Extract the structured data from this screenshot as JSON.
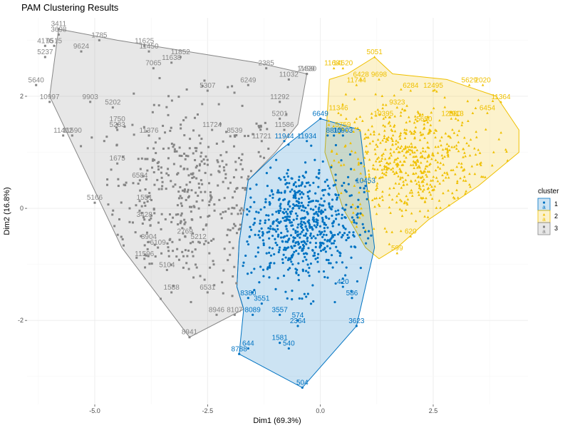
{
  "chart_data": {
    "type": "scatter",
    "title": "PAM Clustering Results",
    "xlabel": "Dim1 (69.3%)",
    "ylabel": "Dim2 (16.8%)",
    "xlim": [
      -6.5,
      4.6
    ],
    "ylim": [
      -3.5,
      3.4
    ],
    "x_ticks": [
      -5.0,
      -2.5,
      0.0,
      2.5
    ],
    "x_tick_labels": [
      "-5.0",
      "-2.5",
      "0.0",
      "2.5"
    ],
    "y_ticks": [
      -2,
      0,
      2
    ],
    "y_tick_labels": [
      "-2",
      "0",
      "2"
    ],
    "grid": true,
    "legend": {
      "title": "cluster",
      "placement": "right",
      "entries": [
        "1",
        "2",
        "3"
      ],
      "key_glyph": "a"
    },
    "colors": {
      "1": "#0073c2",
      "2": "#efc000",
      "3": "#868686"
    },
    "markers": {
      "1": "circle",
      "2": "triangle",
      "3": "square"
    },
    "series": [
      {
        "name": "1",
        "color": "#0073c2",
        "hull": [
          [
            0.0,
            1.6
          ],
          [
            0.88,
            1.4
          ],
          [
            1.0,
            0.6
          ],
          [
            1.2,
            -0.7
          ],
          [
            0.8,
            -2.1
          ],
          [
            -0.4,
            -3.2
          ],
          [
            -1.8,
            -2.6
          ],
          [
            -1.7,
            -1.8
          ],
          [
            -1.85,
            -1.4
          ],
          [
            -1.8,
            -0.6
          ],
          [
            -1.6,
            0.5
          ],
          [
            -0.95,
            1.0
          ]
        ],
        "labeled_points": [
          {
            "x": 0.0,
            "y": 1.6,
            "label": "6649"
          },
          {
            "x": -0.8,
            "y": 1.2,
            "label": "11944"
          },
          {
            "x": -0.3,
            "y": 1.2,
            "label": "11934"
          },
          {
            "x": 0.3,
            "y": 1.3,
            "label": "8815"
          },
          {
            "x": 0.5,
            "y": 1.3,
            "label": "10903"
          },
          {
            "x": 1.0,
            "y": 0.4,
            "label": "10453"
          },
          {
            "x": 0.5,
            "y": -1.4,
            "label": "420"
          },
          {
            "x": 0.7,
            "y": -1.6,
            "label": "586"
          },
          {
            "x": -1.3,
            "y": -1.7,
            "label": "3551"
          },
          {
            "x": -0.9,
            "y": -1.9,
            "label": "3557"
          },
          {
            "x": -1.5,
            "y": -1.9,
            "label": "8089"
          },
          {
            "x": -0.5,
            "y": -2.0,
            "label": "574"
          },
          {
            "x": -0.5,
            "y": -2.1,
            "label": "2364"
          },
          {
            "x": 0.8,
            "y": -2.1,
            "label": "3623"
          },
          {
            "x": -0.9,
            "y": -2.4,
            "label": "1581"
          },
          {
            "x": -0.7,
            "y": -2.5,
            "label": "540"
          },
          {
            "x": -1.6,
            "y": -2.5,
            "label": "644"
          },
          {
            "x": -1.8,
            "y": -2.6,
            "label": "8788"
          },
          {
            "x": -0.4,
            "y": -3.2,
            "label": "504"
          },
          {
            "x": -1.6,
            "y": -1.6,
            "label": "8380"
          }
        ],
        "cloud": {
          "cx": -0.4,
          "cy": -0.3,
          "sx": 0.65,
          "sy": 0.55,
          "n": 650
        }
      },
      {
        "name": "2",
        "color": "#efc000",
        "hull": [
          [
            0.2,
            2.3
          ],
          [
            0.6,
            2.4
          ],
          [
            1.2,
            2.7
          ],
          [
            1.6,
            2.4
          ],
          [
            2.8,
            2.3
          ],
          [
            3.9,
            2.0
          ],
          [
            4.4,
            1.4
          ],
          [
            4.4,
            1.0
          ],
          [
            3.5,
            0.4
          ],
          [
            2.4,
            -0.2
          ],
          [
            1.7,
            -0.7
          ],
          [
            1.3,
            -0.9
          ],
          [
            1.0,
            -0.7
          ],
          [
            0.5,
            0.0
          ],
          [
            0.1,
            1.0
          ]
        ],
        "labeled_points": [
          {
            "x": 0.3,
            "y": 2.5,
            "label": "11681"
          },
          {
            "x": 0.5,
            "y": 2.5,
            "label": "14620"
          },
          {
            "x": 0.9,
            "y": 2.3,
            "label": "6428"
          },
          {
            "x": 1.2,
            "y": 2.7,
            "label": "5051"
          },
          {
            "x": 1.3,
            "y": 2.3,
            "label": "9698"
          },
          {
            "x": 0.8,
            "y": 2.2,
            "label": "11744"
          },
          {
            "x": 2.0,
            "y": 2.1,
            "label": "6284"
          },
          {
            "x": 2.5,
            "y": 2.1,
            "label": "12495"
          },
          {
            "x": 3.3,
            "y": 2.2,
            "label": "5629"
          },
          {
            "x": 3.6,
            "y": 2.2,
            "label": "2020"
          },
          {
            "x": 4.0,
            "y": 1.9,
            "label": "11364"
          },
          {
            "x": 3.7,
            "y": 1.7,
            "label": "6454"
          },
          {
            "x": 3.0,
            "y": 1.6,
            "label": "1913"
          },
          {
            "x": 2.9,
            "y": 1.6,
            "label": "12380"
          },
          {
            "x": 2.3,
            "y": 1.5,
            "label": "5650"
          },
          {
            "x": 1.4,
            "y": 1.6,
            "label": "10395"
          },
          {
            "x": 1.7,
            "y": 1.8,
            "label": "9323"
          },
          {
            "x": 0.4,
            "y": 1.7,
            "label": "11346"
          },
          {
            "x": 0.5,
            "y": 1.4,
            "label": "5759"
          },
          {
            "x": 1.7,
            "y": -0.8,
            "label": "599"
          },
          {
            "x": 2.0,
            "y": -0.5,
            "label": "620"
          }
        ],
        "cloud": {
          "cx": 2.0,
          "cy": 0.8,
          "sx": 0.9,
          "sy": 0.55,
          "n": 600
        }
      },
      {
        "name": "3",
        "color": "#868686",
        "hull": [
          [
            -5.8,
            3.2
          ],
          [
            -4.5,
            3.0
          ],
          [
            -1.4,
            2.6
          ],
          [
            -0.3,
            2.4
          ],
          [
            -0.5,
            1.5
          ],
          [
            -1.0,
            1.0
          ],
          [
            -1.6,
            0.5
          ],
          [
            -1.8,
            -0.6
          ],
          [
            -1.85,
            -1.4
          ],
          [
            -1.7,
            -1.8
          ],
          [
            -2.9,
            -2.3
          ],
          [
            -4.4,
            -0.7
          ],
          [
            -6.0,
            2.0
          ]
        ],
        "labeled_points": [
          {
            "x": -5.8,
            "y": 3.2,
            "label": "3411"
          },
          {
            "x": -5.8,
            "y": 3.1,
            "label": "3698"
          },
          {
            "x": -6.1,
            "y": 2.9,
            "label": "4176"
          },
          {
            "x": -5.9,
            "y": 2.9,
            "label": "9515"
          },
          {
            "x": -5.3,
            "y": 2.8,
            "label": "9624"
          },
          {
            "x": -4.9,
            "y": 3.0,
            "label": "1785"
          },
          {
            "x": -3.9,
            "y": 2.9,
            "label": "11625"
          },
          {
            "x": -3.8,
            "y": 2.8,
            "label": "11450"
          },
          {
            "x": -6.1,
            "y": 2.7,
            "label": "5237"
          },
          {
            "x": -3.1,
            "y": 2.7,
            "label": "11852"
          },
          {
            "x": -3.3,
            "y": 2.6,
            "label": "11638"
          },
          {
            "x": -3.7,
            "y": 2.5,
            "label": "7065"
          },
          {
            "x": -1.2,
            "y": 2.5,
            "label": "2385"
          },
          {
            "x": -0.3,
            "y": 2.4,
            "label": "11530"
          },
          {
            "x": -0.3,
            "y": 2.4,
            "label": "7499"
          },
          {
            "x": -0.7,
            "y": 2.3,
            "label": "11032"
          },
          {
            "x": -6.3,
            "y": 2.2,
            "label": "5640"
          },
          {
            "x": -1.6,
            "y": 2.2,
            "label": "6249"
          },
          {
            "x": -2.5,
            "y": 2.1,
            "label": "5307"
          },
          {
            "x": -6.0,
            "y": 1.9,
            "label": "10997"
          },
          {
            "x": -5.1,
            "y": 1.9,
            "label": "9903"
          },
          {
            "x": -4.6,
            "y": 1.8,
            "label": "5202"
          },
          {
            "x": -0.9,
            "y": 1.9,
            "label": "11292"
          },
          {
            "x": -0.9,
            "y": 1.6,
            "label": "5201"
          },
          {
            "x": -4.5,
            "y": 1.5,
            "label": "1750"
          },
          {
            "x": -4.5,
            "y": 1.4,
            "label": "5283"
          },
          {
            "x": -3.8,
            "y": 1.3,
            "label": "11376"
          },
          {
            "x": -0.8,
            "y": 1.4,
            "label": "11586"
          },
          {
            "x": -5.5,
            "y": 1.3,
            "label": "11590"
          },
          {
            "x": -5.7,
            "y": 1.3,
            "label": "11462"
          },
          {
            "x": -2.4,
            "y": 1.4,
            "label": "11724"
          },
          {
            "x": -1.9,
            "y": 1.3,
            "label": "8539"
          },
          {
            "x": -1.3,
            "y": 1.2,
            "label": "11721"
          },
          {
            "x": -4.5,
            "y": 0.8,
            "label": "1675"
          },
          {
            "x": -4.0,
            "y": 0.5,
            "label": "6584"
          },
          {
            "x": -5.0,
            "y": 0.1,
            "label": "5166"
          },
          {
            "x": -3.9,
            "y": 0.1,
            "label": "1551"
          },
          {
            "x": -3.9,
            "y": -0.2,
            "label": "3428"
          },
          {
            "x": -3.0,
            "y": -0.5,
            "label": "2769"
          },
          {
            "x": -3.8,
            "y": -0.6,
            "label": "8904"
          },
          {
            "x": -3.6,
            "y": -0.7,
            "label": "6109"
          },
          {
            "x": -3.9,
            "y": -0.9,
            "label": "11596"
          },
          {
            "x": -2.7,
            "y": -0.6,
            "label": "5212"
          },
          {
            "x": -3.4,
            "y": -1.1,
            "label": "5104"
          },
          {
            "x": -3.3,
            "y": -1.5,
            "label": "1588"
          },
          {
            "x": -2.5,
            "y": -1.5,
            "label": "6531"
          },
          {
            "x": -2.3,
            "y": -1.9,
            "label": "8946"
          },
          {
            "x": -1.9,
            "y": -1.9,
            "label": "8107"
          },
          {
            "x": -2.9,
            "y": -2.3,
            "label": "8941"
          }
        ],
        "cloud": {
          "cx": -2.9,
          "cy": 0.2,
          "sx": 1.05,
          "sy": 0.85,
          "n": 420
        }
      }
    ]
  }
}
